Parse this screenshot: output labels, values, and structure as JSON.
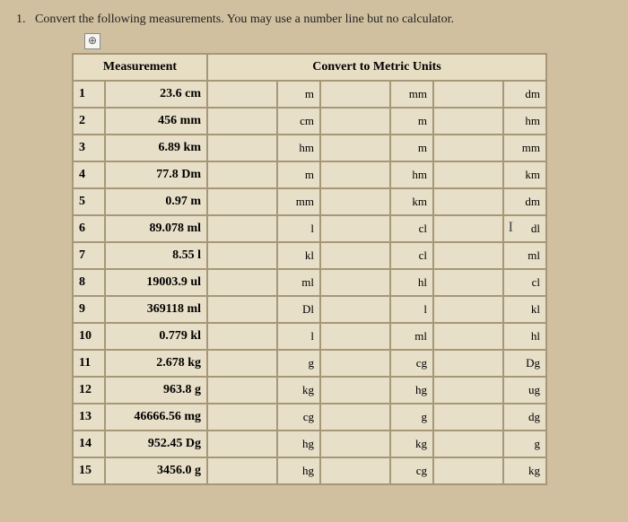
{
  "prompt_number": "1.",
  "prompt_text": "Convert the following measurements. You may use a number line but no calculator.",
  "icon_symbol": "⊕",
  "header_measurement": "Measurement",
  "header_convert": "Convert to Metric Units",
  "cursor_row": 5,
  "rows": [
    {
      "idx": "1",
      "meas": "23.6 cm",
      "u1": "m",
      "u2": "mm",
      "u3": "dm"
    },
    {
      "idx": "2",
      "meas": "456 mm",
      "u1": "cm",
      "u2": "m",
      "u3": "hm"
    },
    {
      "idx": "3",
      "meas": "6.89 km",
      "u1": "hm",
      "u2": "m",
      "u3": "mm"
    },
    {
      "idx": "4",
      "meas": "77.8 Dm",
      "u1": "m",
      "u2": "hm",
      "u3": "km"
    },
    {
      "idx": "5",
      "meas": "0.97 m",
      "u1": "mm",
      "u2": "km",
      "u3": "dm"
    },
    {
      "idx": "6",
      "meas": "89.078 ml",
      "u1": "l",
      "u2": "cl",
      "u3": "dl"
    },
    {
      "idx": "7",
      "meas": "8.55 l",
      "u1": "kl",
      "u2": "cl",
      "u3": "ml"
    },
    {
      "idx": "8",
      "meas": "19003.9 ul",
      "u1": "ml",
      "u2": "hl",
      "u3": "cl"
    },
    {
      "idx": "9",
      "meas": "369118 ml",
      "u1": "Dl",
      "u2": "l",
      "u3": "kl"
    },
    {
      "idx": "10",
      "meas": "0.779 kl",
      "u1": "l",
      "u2": "ml",
      "u3": "hl"
    },
    {
      "idx": "11",
      "meas": "2.678 kg",
      "u1": "g",
      "u2": "cg",
      "u3": "Dg"
    },
    {
      "idx": "12",
      "meas": "963.8 g",
      "u1": "kg",
      "u2": "hg",
      "u3": "ug"
    },
    {
      "idx": "13",
      "meas": "46666.56 mg",
      "u1": "cg",
      "u2": "g",
      "u3": "dg"
    },
    {
      "idx": "14",
      "meas": "952.45 Dg",
      "u1": "hg",
      "u2": "kg",
      "u3": "g"
    },
    {
      "idx": "15",
      "meas": "3456.0 g",
      "u1": "hg",
      "u2": "cg",
      "u3": "kg"
    }
  ]
}
